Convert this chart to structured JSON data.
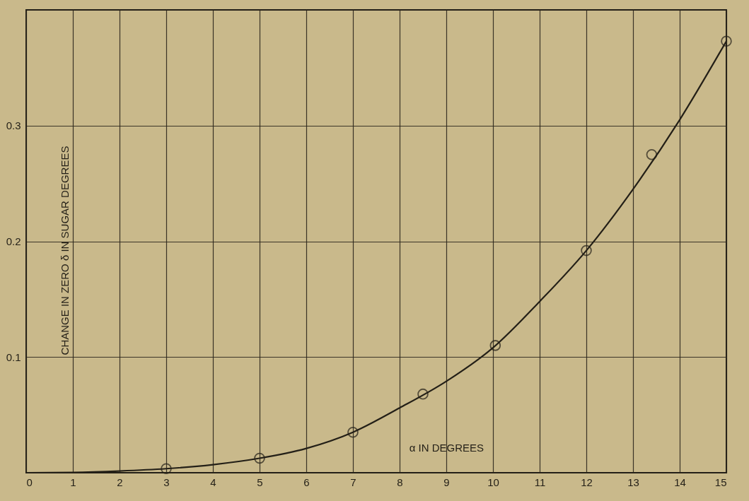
{
  "chart_data": {
    "type": "line",
    "xlabel": "α IN DEGREES",
    "ylabel": "CHANGE IN ZERO δ IN SUGAR DEGREES",
    "xlim": [
      0,
      15
    ],
    "ylim": [
      0,
      0.4
    ],
    "xticks": [
      0,
      1,
      2,
      3,
      4,
      5,
      6,
      7,
      8,
      9,
      10,
      11,
      12,
      13,
      14,
      15
    ],
    "yticks": [
      0.1,
      0.2,
      0.3
    ],
    "grid": true,
    "series": [
      {
        "color": "#231f17",
        "marker": "none",
        "line_style": "solid",
        "x": [
          0,
          1,
          2,
          3,
          4,
          5,
          6,
          7,
          8,
          9,
          10,
          11,
          12,
          13,
          14,
          15
        ],
        "values": [
          0,
          0.0003,
          0.0015,
          0.0035,
          0.007,
          0.0125,
          0.021,
          0.035,
          0.056,
          0.079,
          0.108,
          0.148,
          0.192,
          0.245,
          0.305,
          0.373
        ]
      },
      {
        "type": "scatter",
        "color": "#231f17",
        "marker": "circle",
        "x": [
          3,
          5,
          7,
          8.5,
          10.05,
          12,
          13.4,
          15
        ],
        "values": [
          0.0035,
          0.0125,
          0.035,
          0.068,
          0.11,
          0.192,
          0.275,
          0.373
        ]
      }
    ]
  }
}
